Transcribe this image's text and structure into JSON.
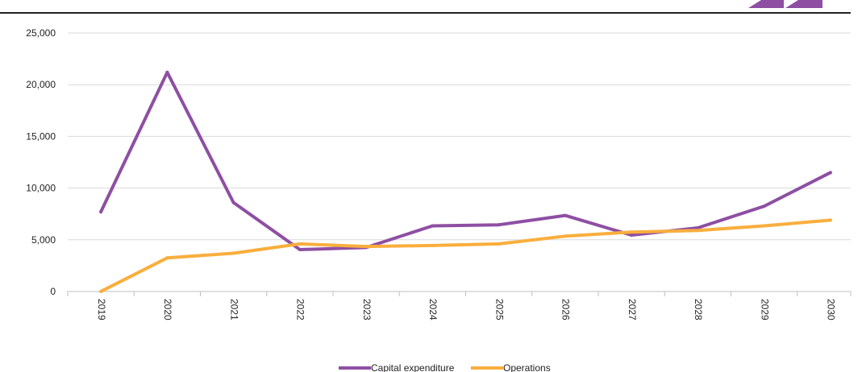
{
  "chart_data": {
    "type": "line",
    "title": "",
    "xlabel": "",
    "ylabel": "",
    "categories": [
      "2019",
      "2020",
      "2021",
      "2022",
      "2023",
      "2024",
      "2025",
      "2026",
      "2027",
      "2028",
      "2029",
      "2030"
    ],
    "ylim": [
      0,
      25000
    ],
    "yticks": [
      0,
      5000,
      10000,
      15000,
      20000,
      25000
    ],
    "ytick_labels": [
      "0",
      "5,000",
      "10,000",
      "15,000",
      "20,000",
      "25,000"
    ],
    "grid": true,
    "legend_position": "bottom-center",
    "series": [
      {
        "name": "Capital expenditure",
        "color": "#8E4FA3",
        "values": [
          7700,
          21200,
          8600,
          4050,
          4250,
          6350,
          6450,
          7350,
          5450,
          6150,
          8250,
          11500
        ]
      },
      {
        "name": "Operations",
        "color": "#F9AE3D",
        "values": [
          0,
          3250,
          3700,
          4600,
          4350,
          4450,
          4600,
          5350,
          5750,
          5900,
          6350,
          6900
        ]
      }
    ],
    "accent_color": "#8E4FA3"
  }
}
